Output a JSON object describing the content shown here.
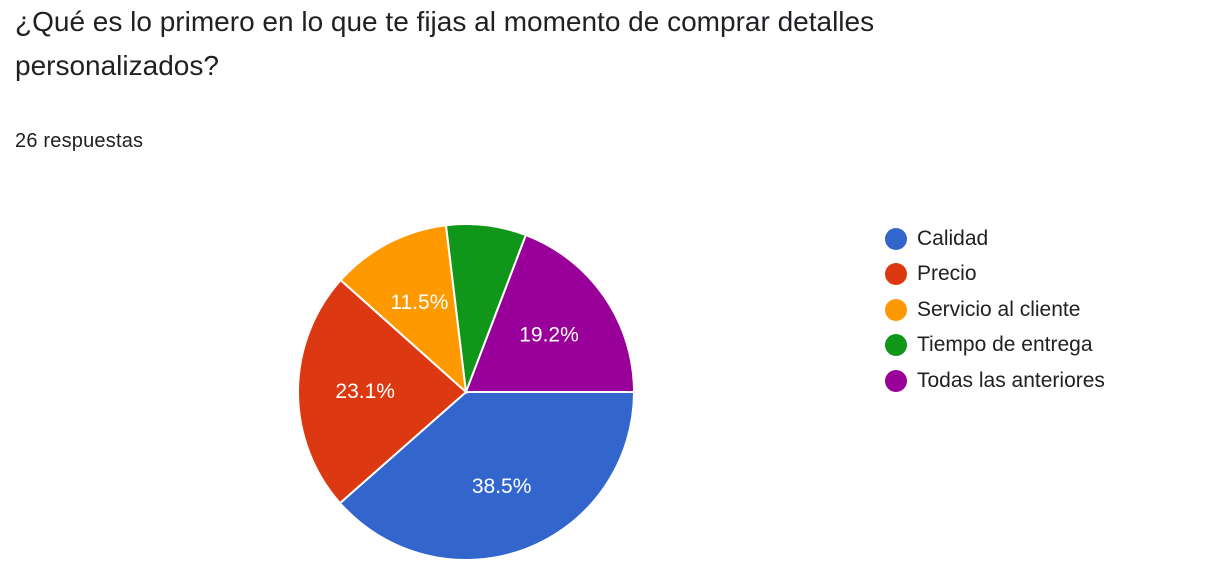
{
  "question": {
    "title": "¿Qué es lo primero en lo que te fijas al momento de comprar detalles personalizados?",
    "responses": "26 respuestas"
  },
  "chart_data": {
    "type": "pie",
    "categories": [
      "Calidad",
      "Precio",
      "Servicio al cliente",
      "Tiempo de entrega",
      "Todas las anteriores"
    ],
    "values": [
      38.5,
      23.1,
      11.5,
      7.7,
      19.2
    ],
    "data_labels": [
      "38.5%",
      "23.1%",
      "11.5%",
      "",
      "19.2%"
    ],
    "colors": [
      "#3366cc",
      "#dc3912",
      "#ff9900",
      "#109618",
      "#990099"
    ],
    "legend_position": "right",
    "start": "3 o'clock, clockwise"
  }
}
